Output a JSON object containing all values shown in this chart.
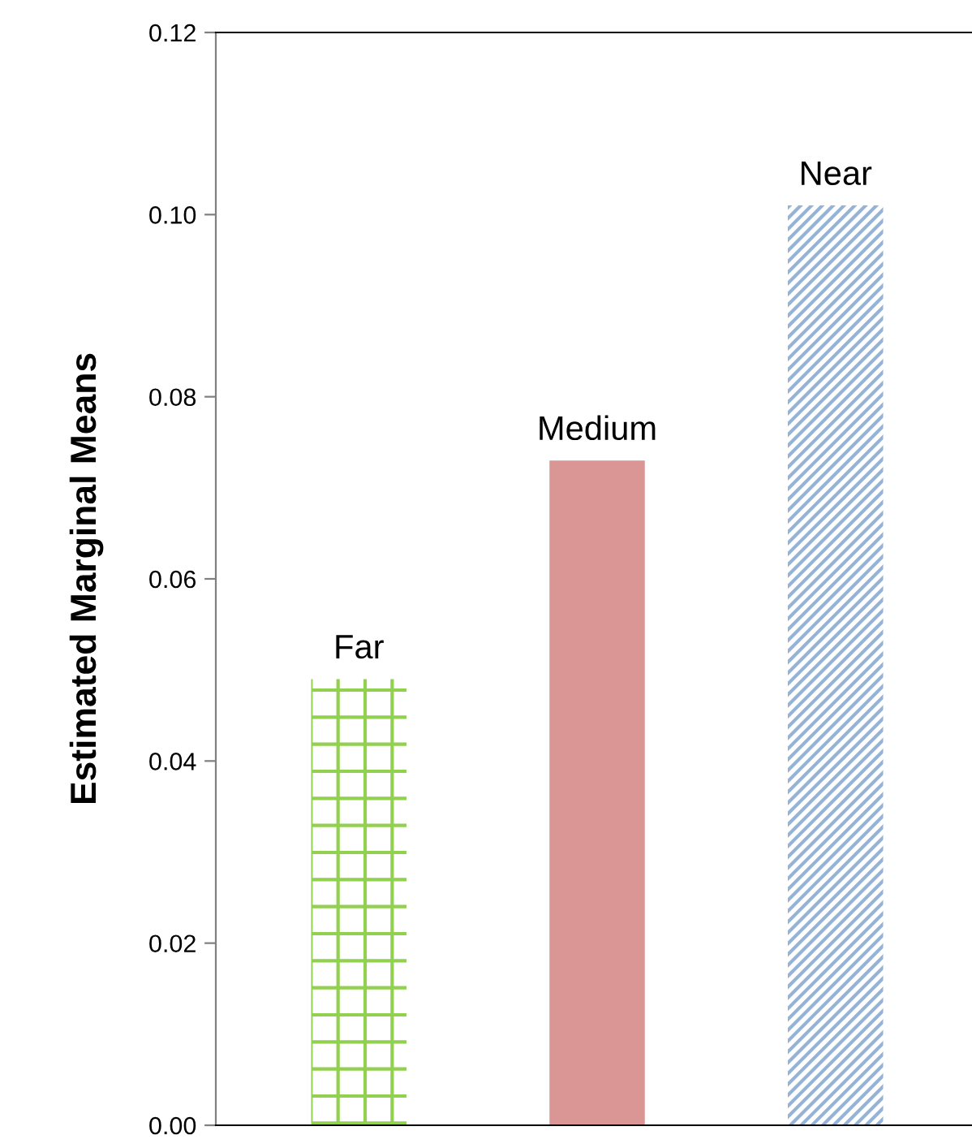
{
  "chart_data": {
    "type": "bar",
    "ylabel": "Estimated Marginal Means",
    "categories": [
      "Far",
      "Medium",
      "Near"
    ],
    "values": [
      0.049,
      0.073,
      0.101
    ],
    "colors": [
      "#92d050",
      "#d99694",
      "#95b3d7"
    ],
    "ylim": [
      0,
      0.12
    ],
    "yticks": [
      {
        "value": 0,
        "label": "0.00"
      },
      {
        "value": 0.02,
        "label": "0.02"
      },
      {
        "value": 0.04,
        "label": "0.04"
      },
      {
        "value": 0.06,
        "label": "0.06"
      },
      {
        "value": 0.08,
        "label": "0.08"
      },
      {
        "value": 0.1,
        "label": "0.10"
      },
      {
        "value": 0.12,
        "label": "0.12"
      }
    ],
    "tick_labels": "y",
    "grid": false,
    "legend": false
  }
}
